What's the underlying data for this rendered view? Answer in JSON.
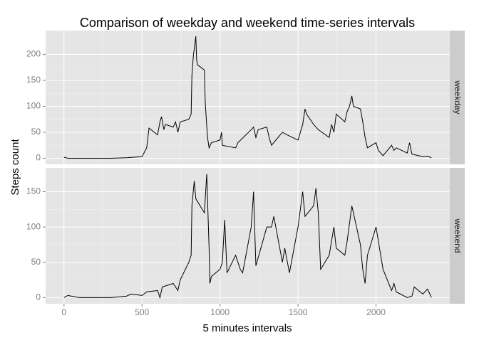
{
  "chart_data": {
    "type": "line",
    "title": "Comparison of weekday and weekend time-series intervals",
    "xlabel": "5 minutes intervals",
    "ylabel": "Steps count",
    "color": "#000000",
    "grid": true,
    "xlim": [
      -117.75,
      2472.75
    ],
    "xticks": [
      0,
      500,
      1000,
      1500,
      2000
    ],
    "facets": [
      {
        "name": "weekday",
        "ylim": [
          -11.7,
          245.8
        ],
        "yticks": [
          0,
          50,
          100,
          150,
          200
        ],
        "x": [
          0,
          25,
          100,
          200,
          300,
          400,
          500,
          530,
          545,
          600,
          615,
          625,
          640,
          650,
          700,
          715,
          730,
          745,
          800,
          815,
          820,
          830,
          835,
          845,
          850,
          855,
          900,
          905,
          910,
          920,
          930,
          945,
          1000,
          1010,
          1015,
          1100,
          1115,
          1200,
          1215,
          1230,
          1245,
          1300,
          1315,
          1330,
          1400,
          1430,
          1500,
          1515,
          1530,
          1545,
          1555,
          1600,
          1630,
          1700,
          1715,
          1730,
          1745,
          1800,
          1815,
          1830,
          1845,
          1855,
          1900,
          1915,
          1930,
          1945,
          2000,
          2015,
          2030,
          2045,
          2100,
          2115,
          2130,
          2200,
          2215,
          2230,
          2300,
          2330,
          2355
        ],
        "values": [
          2,
          0,
          0,
          0,
          0,
          1,
          3,
          20,
          58,
          45,
          70,
          80,
          55,
          65,
          60,
          70,
          50,
          70,
          75,
          85,
          160,
          200,
          210,
          235,
          190,
          180,
          170,
          110,
          85,
          40,
          20,
          30,
          35,
          50,
          25,
          20,
          30,
          55,
          60,
          40,
          55,
          60,
          40,
          25,
          50,
          45,
          35,
          50,
          65,
          95,
          85,
          65,
          55,
          40,
          65,
          50,
          85,
          70,
          90,
          100,
          120,
          100,
          95,
          70,
          40,
          20,
          30,
          15,
          10,
          5,
          25,
          15,
          20,
          10,
          30,
          8,
          3,
          4,
          1
        ]
      },
      {
        "name": "weekend",
        "ylim": [
          -8.75,
          183.75
        ],
        "yticks": [
          0,
          50,
          100,
          150
        ],
        "x": [
          0,
          25,
          100,
          200,
          300,
          400,
          430,
          500,
          530,
          600,
          615,
          630,
          700,
          730,
          745,
          800,
          815,
          820,
          835,
          845,
          900,
          915,
          930,
          935,
          945,
          1000,
          1015,
          1030,
          1045,
          1100,
          1130,
          1145,
          1200,
          1215,
          1230,
          1300,
          1330,
          1345,
          1400,
          1415,
          1445,
          1500,
          1530,
          1545,
          1600,
          1615,
          1630,
          1645,
          1700,
          1730,
          1745,
          1800,
          1815,
          1830,
          1845,
          1900,
          1915,
          1930,
          1945,
          2000,
          2015,
          2030,
          2045,
          2100,
          2115,
          2130,
          2200,
          2230,
          2245,
          2300,
          2330,
          2345,
          2355
        ],
        "values": [
          0,
          3,
          0,
          0,
          0,
          2,
          5,
          3,
          8,
          10,
          0,
          15,
          20,
          10,
          25,
          50,
          60,
          130,
          165,
          140,
          120,
          175,
          70,
          20,
          30,
          40,
          50,
          110,
          35,
          60,
          40,
          35,
          100,
          150,
          45,
          100,
          100,
          115,
          50,
          70,
          35,
          100,
          150,
          115,
          130,
          155,
          120,
          40,
          60,
          100,
          70,
          60,
          80,
          105,
          130,
          75,
          40,
          20,
          60,
          100,
          80,
          60,
          40,
          10,
          20,
          8,
          0,
          2,
          15,
          5,
          12,
          5,
          0
        ]
      }
    ]
  }
}
